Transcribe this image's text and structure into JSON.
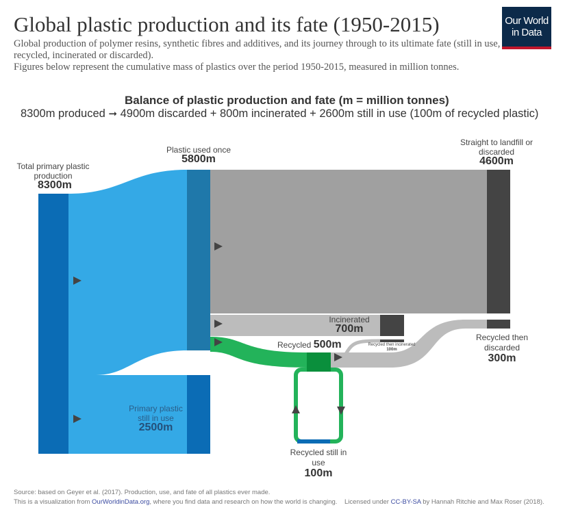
{
  "title": "Global plastic production and its fate (1950-2015)",
  "subtitle": [
    "Global production of polymer resins, synthetic fibres and additives, and its journey through to its ultimate fate (still in use, recycled, incinerated or discarded).",
    "Figures below represent the cumulative mass of plastics over the period 1950-2015, measured in million tonnes."
  ],
  "logo": [
    "Our World",
    "in Data"
  ],
  "balance": {
    "title": "Balance of plastic production and fate (m = million tonnes)",
    "left": "8300m produced",
    "right": "4900m discarded + 800m incinerated + 2600m still in use (100m of recycled plastic)"
  },
  "nodes": {
    "primary": {
      "label": "Total primary plastic production",
      "value": "8300m"
    },
    "used_once": {
      "label": "Plastic used once",
      "value": "5800m"
    },
    "landfill": {
      "label": "Straight to landfill or discarded",
      "value": "4600m"
    },
    "incinerated": {
      "label": "Incinerated",
      "value": "700m"
    },
    "recycled": {
      "label": "Recycled",
      "value": "500m"
    },
    "recycled_incinerated": {
      "label": "Recycled then incinerated",
      "value": "100m"
    },
    "recycled_discarded": {
      "label": "Recycled then discarded",
      "value": "300m"
    },
    "recycled_in_use": {
      "label": "Recycled still in use",
      "value": "100m"
    },
    "primary_in_use": {
      "label": "Primary plastic still in use",
      "value": "2500m"
    }
  },
  "colors": {
    "primary": "#0b6cb5",
    "flow_blue": "#34a9e6",
    "used_once": "#1f78aa",
    "gray_flow": "#a0a0a0",
    "incinerated_flow": "#bcbcbc",
    "dark_node": "#444444",
    "green": "#23b35a",
    "green_dark": "#0a8f3c"
  },
  "footer": {
    "source": "Source: based on Geyer et al. (2017). Production, use, and fate of all plastics ever made.",
    "line2_pre": "This is a visualization from ",
    "link1": "OurWorldinData.org",
    "line2_mid": ", where you find data and research on how the world is changing.    Licensed under ",
    "link2": "CC-BY-SA",
    "line2_post": " by Hannah Ritchie and Max Roser (2018)."
  }
}
